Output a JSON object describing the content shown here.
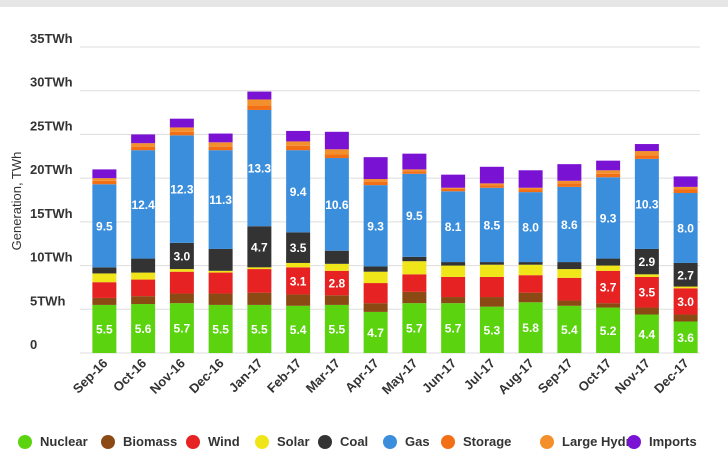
{
  "chart_data": {
    "type": "bar",
    "stacked": true,
    "ylabel": "Generation, TWh",
    "ylim": [
      0,
      35
    ],
    "yticks": [
      "0",
      "5TWh",
      "10TWh",
      "15TWh",
      "20TWh",
      "25TWh",
      "30TWh",
      "35TWh"
    ],
    "grid": true,
    "legend_position": "bottom",
    "categories": [
      "Sep-16",
      "Oct-16",
      "Nov-16",
      "Dec-16",
      "Jan-17",
      "Feb-17",
      "Mar-17",
      "Apr-17",
      "May-17",
      "Jun-17",
      "Jul-17",
      "Aug-17",
      "Sep-17",
      "Oct-17",
      "Nov-17",
      "Dec-17"
    ],
    "series": [
      {
        "name": "Nuclear",
        "color": "#5bd40f",
        "values": [
          5.5,
          5.6,
          5.7,
          5.5,
          5.5,
          5.4,
          5.5,
          4.7,
          5.7,
          5.7,
          5.3,
          5.8,
          5.4,
          5.2,
          4.4,
          3.6
        ]
      },
      {
        "name": "Biomass",
        "color": "#8b4a13",
        "values": [
          0.8,
          0.9,
          1.1,
          1.3,
          1.4,
          1.3,
          1.1,
          1.0,
          1.3,
          0.7,
          1.1,
          1.1,
          0.6,
          0.5,
          0.8,
          0.8
        ]
      },
      {
        "name": "Wind",
        "color": "#e62222",
        "values": [
          1.8,
          1.9,
          2.5,
          2.4,
          2.7,
          3.1,
          2.8,
          2.3,
          2.0,
          2.3,
          2.3,
          2.0,
          2.6,
          3.7,
          3.5,
          3.0
        ]
      },
      {
        "name": "Solar",
        "color": "#f0e519",
        "values": [
          1.0,
          0.8,
          0.3,
          0.2,
          0.2,
          0.5,
          0.8,
          1.3,
          1.5,
          1.3,
          1.4,
          1.2,
          1.0,
          0.6,
          0.3,
          0.2
        ]
      },
      {
        "name": "Coal",
        "color": "#333333",
        "values": [
          0.7,
          1.6,
          3.0,
          2.5,
          4.7,
          3.5,
          1.5,
          0.6,
          0.5,
          0.4,
          0.3,
          0.3,
          0.8,
          0.8,
          2.9,
          2.7
        ]
      },
      {
        "name": "Gas",
        "color": "#3b8edb",
        "values": [
          9.5,
          12.4,
          12.3,
          11.3,
          13.3,
          9.4,
          10.6,
          9.3,
          9.5,
          8.1,
          8.5,
          8.0,
          8.6,
          9.3,
          10.3,
          8.0
        ]
      },
      {
        "name": "Storage",
        "color": "#f36f16",
        "values": [
          0.4,
          0.4,
          0.4,
          0.4,
          0.5,
          0.5,
          0.4,
          0.4,
          0.3,
          0.3,
          0.3,
          0.3,
          0.4,
          0.4,
          0.4,
          0.4
        ]
      },
      {
        "name": "Large Hydro",
        "color": "#f4902c",
        "values": [
          0.3,
          0.4,
          0.5,
          0.5,
          0.7,
          0.5,
          0.6,
          0.3,
          0.2,
          0.1,
          0.2,
          0.2,
          0.3,
          0.4,
          0.5,
          0.3
        ]
      },
      {
        "name": "Imports",
        "color": "#7a12d4",
        "values": [
          1.0,
          1.0,
          1.0,
          1.0,
          0.9,
          1.2,
          2.0,
          2.5,
          1.8,
          1.5,
          1.9,
          2.0,
          1.9,
          1.1,
          0.8,
          1.2
        ]
      }
    ],
    "value_labels": {
      "Nuclear": [
        "5.5",
        "5.6",
        "5.7",
        "5.5",
        "5.5",
        "5.4",
        "5.5",
        "4.7",
        "5.7",
        "5.7",
        "5.3",
        "5.8",
        "5.4",
        "5.2",
        "4.4",
        "3.6"
      ],
      "Wind": [
        "",
        "",
        "",
        "",
        "",
        "3.1",
        "2.8",
        "",
        "",
        "",
        "",
        "",
        "",
        "3.7",
        "3.5",
        "3.0"
      ],
      "Coal": [
        "",
        "",
        "3.0",
        "",
        "4.7",
        "3.5",
        "",
        "",
        "",
        "",
        "",
        "",
        "",
        "",
        "2.9",
        "2.7"
      ],
      "Gas": [
        "9.5",
        "12.4",
        "12.3",
        "11.3",
        "13.3",
        "9.4",
        "10.6",
        "9.3",
        "9.5",
        "8.1",
        "8.5",
        "8.0",
        "8.6",
        "9.3",
        "10.3",
        "8.0"
      ]
    }
  }
}
